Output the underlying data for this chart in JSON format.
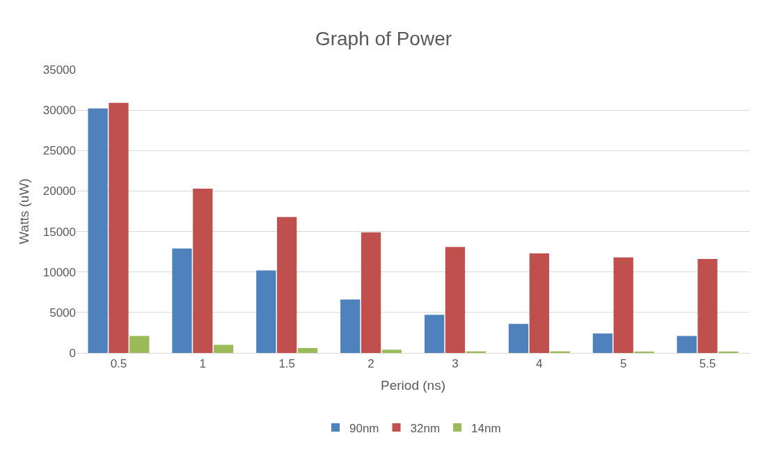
{
  "chart_data": {
    "type": "bar",
    "title": "Graph of Power",
    "xlabel": "Period (ns)",
    "ylabel": "Watts (uW)",
    "categories": [
      "0.5",
      "1",
      "1.5",
      "2",
      "3",
      "4",
      "5",
      "5.5"
    ],
    "series": [
      {
        "name": "90nm",
        "color": "#4f81bd",
        "values": [
          30200,
          12900,
          10200,
          6600,
          4700,
          3600,
          2400,
          2100
        ]
      },
      {
        "name": "32nm",
        "color": "#c0504d",
        "values": [
          30900,
          20300,
          16800,
          14900,
          13100,
          12300,
          11800,
          11600
        ]
      },
      {
        "name": "14nm",
        "color": "#9bbb59",
        "values": [
          2100,
          1000,
          600,
          400,
          200,
          200,
          100,
          100
        ]
      }
    ],
    "ylim": [
      0,
      35000
    ],
    "yticks": [
      0,
      5000,
      10000,
      15000,
      20000,
      25000,
      30000,
      35000
    ],
    "grid": "y",
    "legend": "bottom"
  }
}
